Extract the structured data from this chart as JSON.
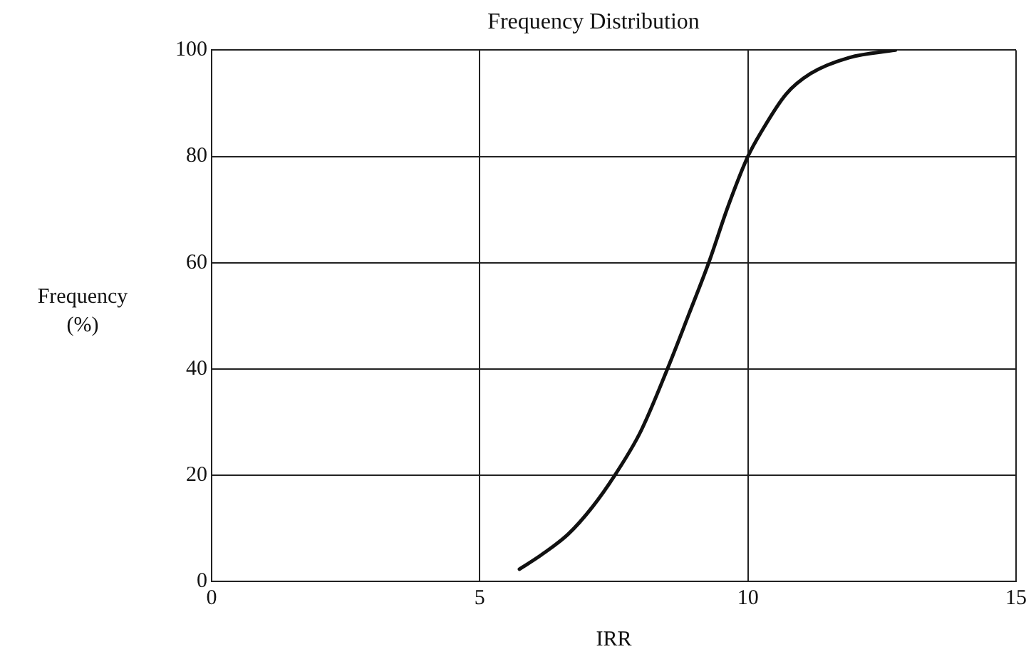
{
  "chart_data": {
    "type": "line",
    "title": "Frequency Distribution",
    "xlabel": "IRR",
    "ylabel": "Frequency\n(%)",
    "series": [
      {
        "color": "#111111",
        "x": [
          5.74,
          6.15,
          6.65,
          7.1,
          7.52,
          8.0,
          8.5,
          8.9,
          9.27,
          9.63,
          10.0,
          10.26,
          10.71,
          11.17,
          11.89,
          12.75
        ],
        "values": [
          2.3,
          5.0,
          8.9,
          14,
          20,
          28.2,
          40,
          50.3,
          60,
          70.6,
          80,
          84.8,
          91.7,
          95.6,
          98.6,
          100
        ]
      }
    ],
    "xlim": [
      0,
      15
    ],
    "xticks": [
      0,
      5,
      10,
      15
    ],
    "ylim": [
      0,
      100
    ],
    "yticks": [
      0,
      20,
      40,
      60,
      80,
      100
    ],
    "grid": true,
    "legend": false,
    "marker": "none",
    "line_style": "solid"
  }
}
